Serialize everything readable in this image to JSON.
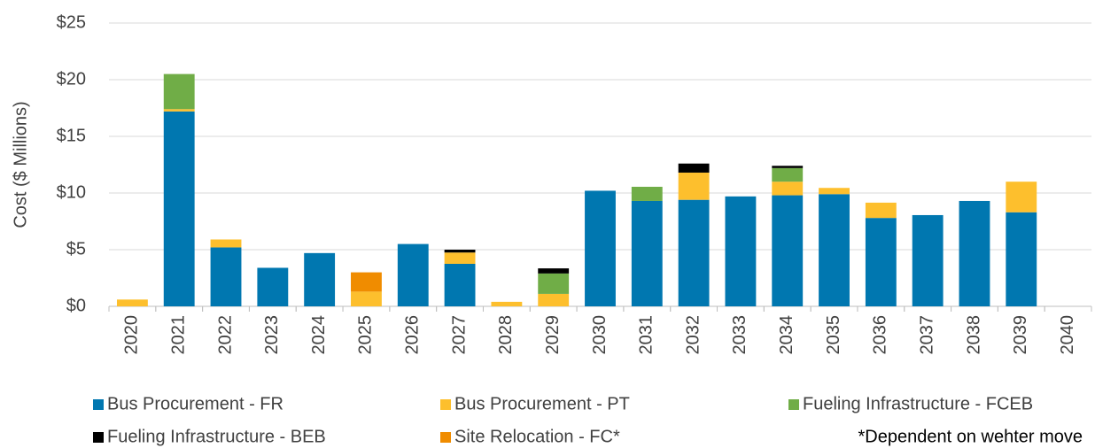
{
  "chart_data": {
    "type": "stacked_bar",
    "y_label": "Cost ($ Millions)",
    "categories": [
      "2020",
      "2021",
      "2022",
      "2023",
      "2024",
      "2025",
      "2026",
      "2027",
      "2028",
      "2029",
      "2030",
      "2031",
      "2032",
      "2033",
      "2034",
      "2035",
      "2036",
      "2037",
      "2038",
      "2039",
      "2040"
    ],
    "series": [
      {
        "name": "Bus Procurement - FR",
        "color": "#0077b0",
        "values": [
          0,
          17.2,
          5.2,
          3.4,
          4.7,
          0,
          5.5,
          3.75,
          0,
          0,
          10.2,
          9.3,
          9.4,
          9.7,
          9.8,
          9.9,
          7.8,
          8.05,
          9.3,
          8.3,
          0
        ]
      },
      {
        "name": "Bus Procurement - PT",
        "color": "#fdbf2d",
        "values": [
          0.6,
          0.2,
          0.7,
          0,
          0,
          1.3,
          0,
          1.0,
          0.4,
          1.1,
          0,
          0,
          2.4,
          0,
          1.2,
          0.55,
          1.35,
          0,
          0,
          2.7,
          0
        ]
      },
      {
        "name": "Fueling Infrastructure - FCEB",
        "color": "#70ad47",
        "values": [
          0,
          3.1,
          0,
          0,
          0,
          0,
          0,
          0,
          0,
          1.8,
          0,
          1.25,
          0,
          0,
          1.2,
          0,
          0,
          0,
          0,
          0,
          0
        ]
      },
      {
        "name": "Fueling Infrastructure - BEB",
        "color": "#000000",
        "values": [
          0,
          0,
          0,
          0,
          0,
          0,
          0,
          0.25,
          0,
          0.45,
          0,
          0,
          0.8,
          0,
          0.2,
          0,
          0,
          0,
          0,
          0,
          0
        ]
      },
      {
        "name": "Site Relocation - FC*",
        "color": "#f08c00",
        "values": [
          0,
          0,
          0,
          0,
          0,
          1.7,
          0,
          0,
          0,
          0,
          0,
          0,
          0,
          0,
          0,
          0,
          0,
          0,
          0,
          0,
          0
        ]
      }
    ],
    "ylim": [
      0,
      25
    ],
    "yticks": [
      {
        "value": 0,
        "label": "$0"
      },
      {
        "value": 5,
        "label": "$5"
      },
      {
        "value": 10,
        "label": "$10"
      },
      {
        "value": 15,
        "label": "$15"
      },
      {
        "value": 20,
        "label": "$20"
      },
      {
        "value": 25,
        "label": "$25"
      }
    ],
    "grid": true,
    "legend": "bottom",
    "annotation": "*Dependent on wehter move"
  }
}
